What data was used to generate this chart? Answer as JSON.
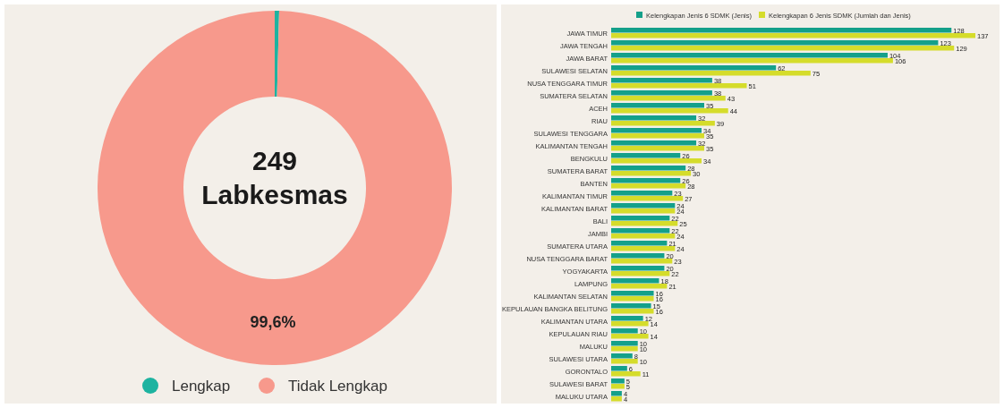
{
  "chart_data": [
    {
      "type": "donut",
      "categories": [
        "Lengkap",
        "Tidak Lengkap"
      ],
      "values": [
        0.4,
        99.6
      ],
      "colors": [
        "#1db3a0",
        "#f7998c"
      ],
      "value_labels": [
        null,
        "99,6%"
      ],
      "annotations": [
        "249 Labkesmas"
      ],
      "legend": "bottom"
    },
    {
      "type": "bar",
      "orientation": "horizontal",
      "categories": [
        "JAWA TIMUR",
        "JAWA TENGAH",
        "JAWA BARAT",
        "SULAWESI SELATAN",
        "NUSA TENGGARA TIMUR",
        "SUMATERA SELATAN",
        "ACEH",
        "RIAU",
        "SULAWESI TENGGARA",
        "KALIMANTAN TENGAH",
        "BENGKULU",
        "SUMATERA BARAT",
        "BANTEN",
        "KALIMANTAN TIMUR",
        "KALIMANTAN BARAT",
        "BALI",
        "JAMBI",
        "SUMATERA UTARA",
        "NUSA TENGGARA BARAT",
        "YOGYAKARTA",
        "LAMPUNG",
        "KALIMANTAN SELATAN",
        "KEPULAUAN BANGKA BELITUNG",
        "KALIMANTAN UTARA",
        "KEPULAUAN RIAU",
        "MALUKU",
        "SULAWESI UTARA",
        "GORONTALO",
        "SULAWESI BARAT",
        "MALUKU UTARA"
      ],
      "series": [
        {
          "name": "Kelengkapan Jenis 6 SDMK (Jenis)",
          "color": "#14a08a",
          "values": [
            128,
            123,
            104,
            62,
            38,
            38,
            35,
            32,
            34,
            32,
            26,
            28,
            26,
            23,
            24,
            22,
            22,
            21,
            20,
            20,
            18,
            16,
            15,
            12,
            10,
            10,
            8,
            6,
            5,
            4
          ]
        },
        {
          "name": "Kelengkapan 6 Jenis SDMK (Jumlah dan Jenis)",
          "color": "#d5dc2b",
          "values": [
            137,
            129,
            106,
            75,
            51,
            43,
            44,
            39,
            35,
            35,
            34,
            30,
            28,
            27,
            24,
            25,
            24,
            24,
            23,
            22,
            21,
            16,
            16,
            14,
            14,
            10,
            10,
            11,
            5,
            4
          ]
        }
      ],
      "data_labels": true,
      "legend": "top"
    }
  ]
}
